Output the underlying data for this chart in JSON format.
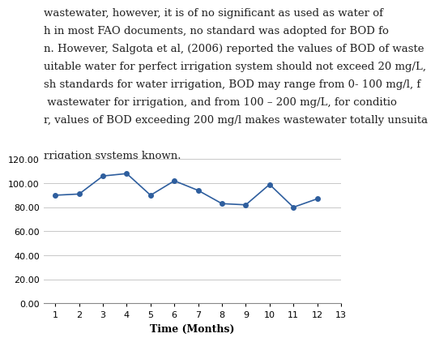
{
  "x": [
    1,
    2,
    3,
    4,
    5,
    6,
    7,
    8,
    9,
    10,
    11,
    12
  ],
  "y": [
    90,
    91,
    106,
    108,
    90,
    102,
    94,
    83,
    82,
    99,
    80,
    87
  ],
  "xlabel": "Time (Months)",
  "xlim": [
    0.5,
    13
  ],
  "ylim": [
    0,
    120
  ],
  "yticks": [
    0,
    20,
    40,
    60,
    80,
    100,
    120
  ],
  "ytick_labels": [
    "0.00",
    "20.00",
    "40.00",
    "60.00",
    "80.00",
    "100.00",
    "120.00"
  ],
  "xticks": [
    1,
    2,
    3,
    4,
    5,
    6,
    7,
    8,
    9,
    10,
    11,
    12,
    13
  ],
  "line_color": "#2E5E9E",
  "marker": "o",
  "marker_size": 4,
  "line_width": 1.2,
  "grid_color": "#C8C8C8",
  "background_color": "#FFFFFF",
  "xlabel_fontsize": 9,
  "tick_fontsize": 8,
  "text_lines": [
    "wastewater, however, it is of no significant as used as water of",
    "h in most FAO documents, no standard was adopted for BOD fo",
    "n. However, Salgota et al, (2006) reported the values of BOD of waste",
    "uitable water for perfect irrigation system should not exceed 20 mg/L,",
    "sh standards for water irrigation, BOD may range from 0- 100 mg/l, f",
    " wastewater for irrigation, and from 100 – 200 mg/L, for conditio",
    "r, values of BOD exceeding 200 mg/l makes wastewater totally unsuita",
    "",
    "rrigation systems known."
  ],
  "text_fontsize": 9.5,
  "text_color": "#222222"
}
